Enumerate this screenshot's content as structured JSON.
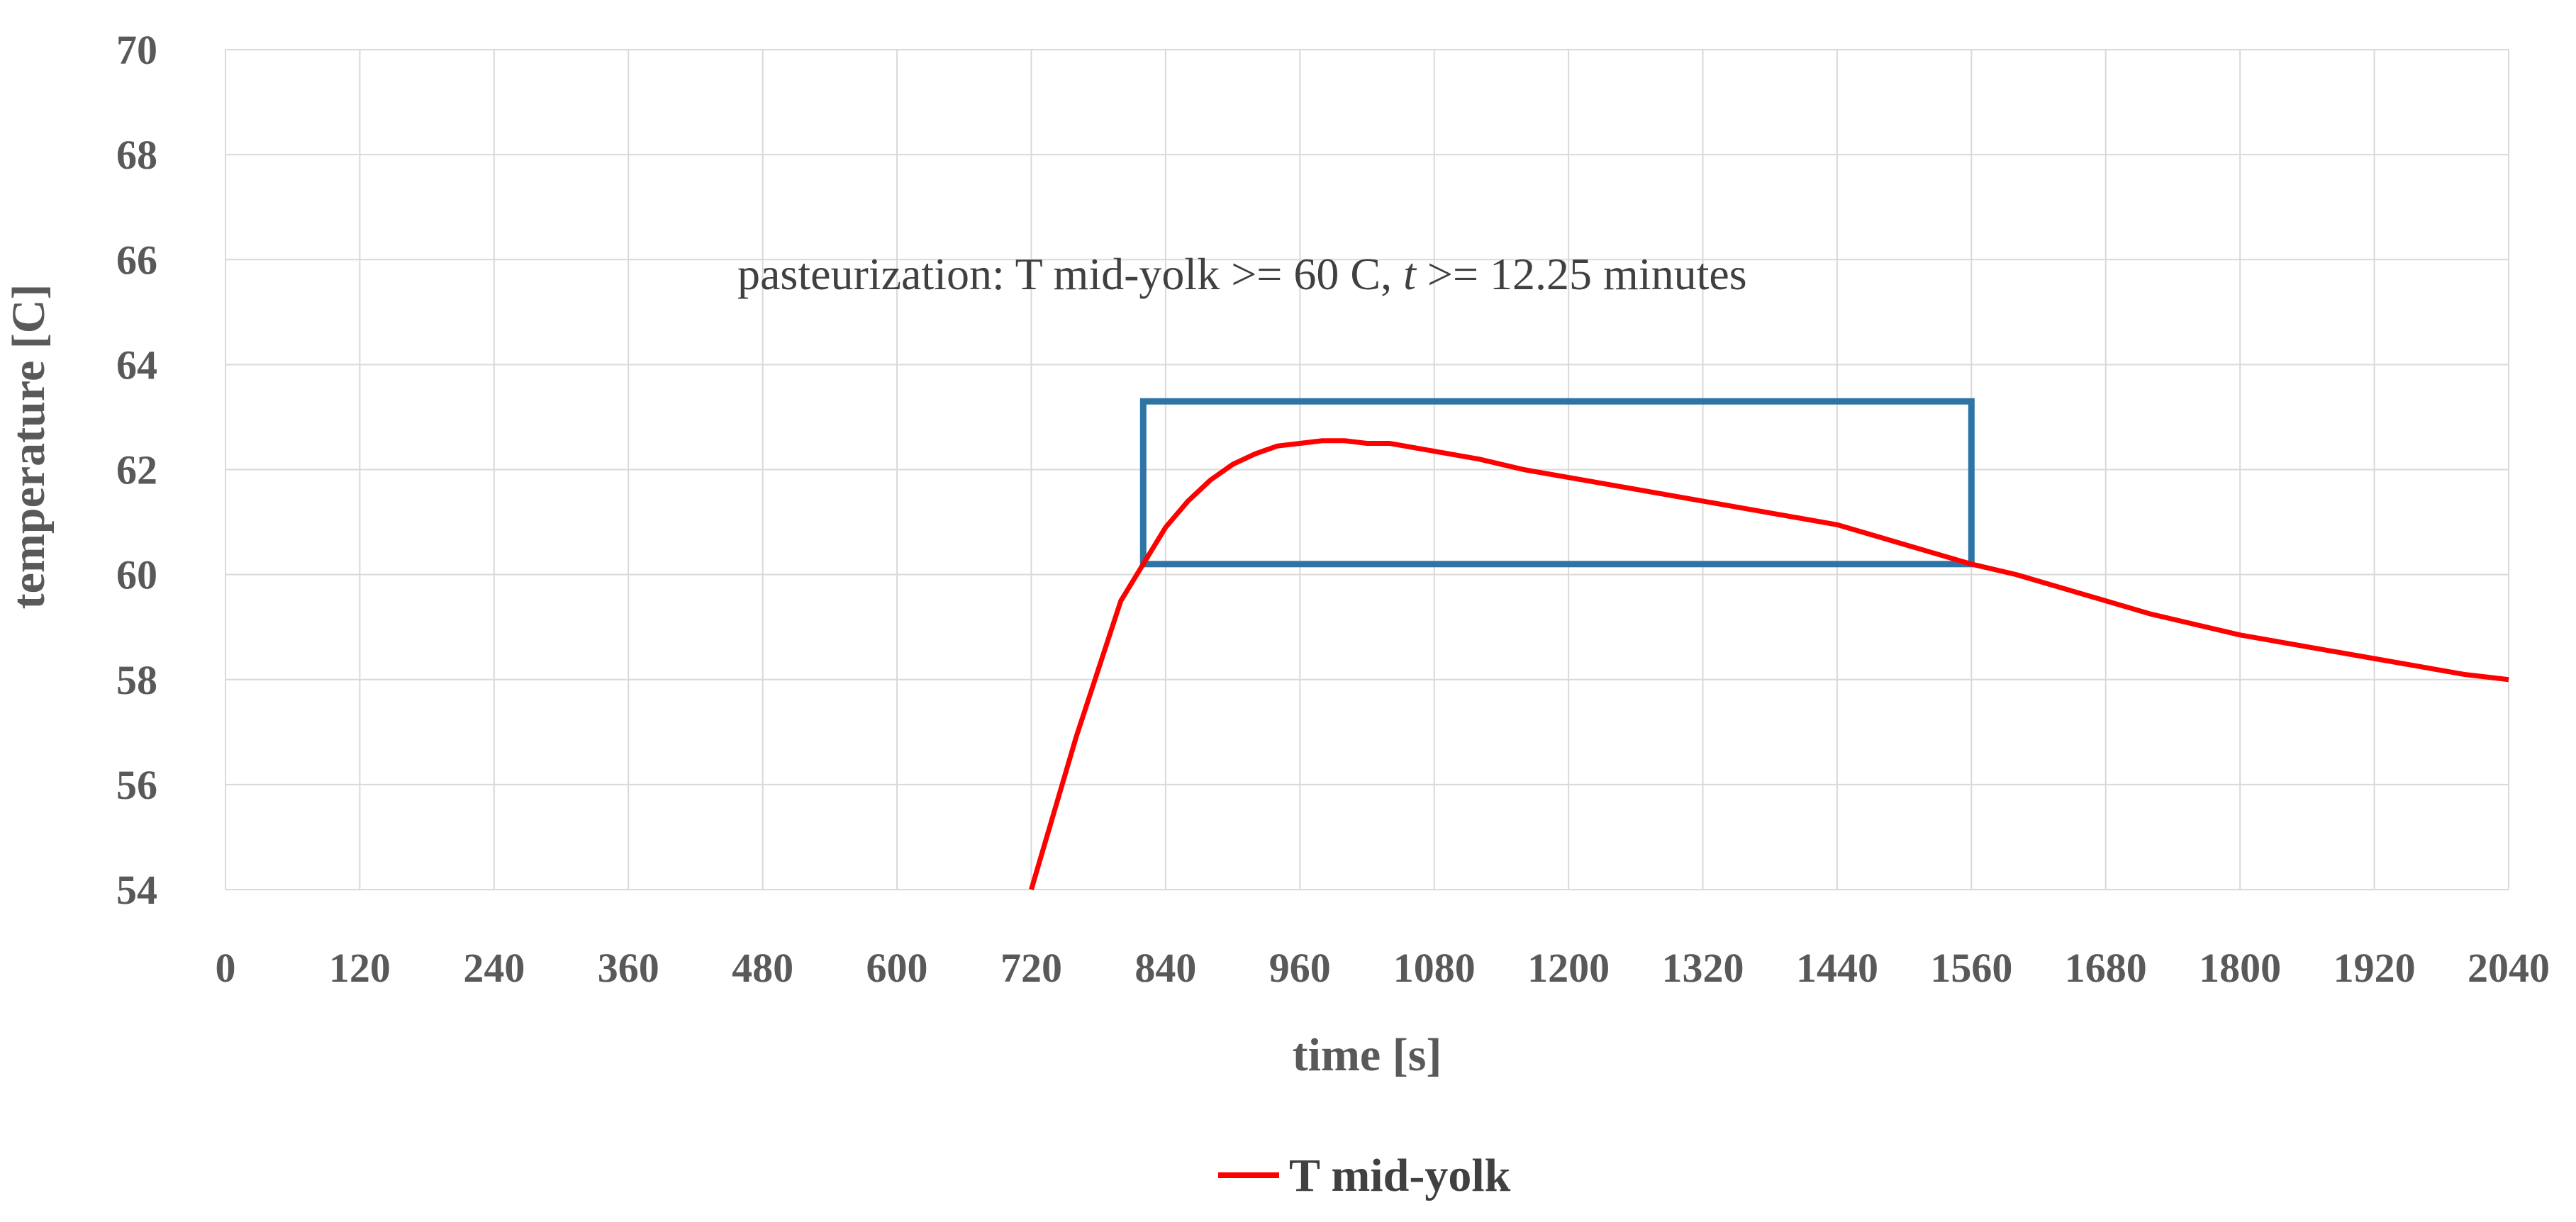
{
  "chart_data": {
    "type": "line",
    "title": "",
    "xlabel": "time [s]",
    "ylabel": "temperature [C]",
    "xlim": [
      0,
      2040
    ],
    "ylim": [
      54,
      70
    ],
    "x_ticks": [
      0,
      120,
      240,
      360,
      480,
      600,
      720,
      840,
      960,
      1080,
      1200,
      1320,
      1440,
      1560,
      1680,
      1800,
      1920,
      2040
    ],
    "y_ticks": [
      54,
      56,
      58,
      60,
      62,
      64,
      66,
      68,
      70
    ],
    "grid": true,
    "legend": {
      "position": "bottom-center",
      "entries": [
        "T mid-yolk"
      ]
    },
    "colors": {
      "series": "#ff0000",
      "box": "#2e75a6",
      "grid": "#d9d9d9",
      "text": "#595959"
    },
    "annotation": {
      "prefix": "pasteurization: T mid-yolk >= 60 C, ",
      "italic": "t",
      "suffix": " >= 12.25 minutes"
    },
    "highlight_box": {
      "x_start": 820,
      "x_end": 1560,
      "y_bottom": 60.2,
      "y_top": 63.3
    },
    "series": [
      {
        "name": "T mid-yolk",
        "x": [
          720,
          760,
          800,
          820,
          840,
          860,
          880,
          900,
          920,
          940,
          960,
          980,
          1000,
          1020,
          1040,
          1080,
          1120,
          1160,
          1200,
          1240,
          1280,
          1320,
          1360,
          1400,
          1440,
          1480,
          1520,
          1560,
          1600,
          1640,
          1680,
          1720,
          1760,
          1800,
          1840,
          1880,
          1920,
          1960,
          2000,
          2040
        ],
        "y": [
          54.0,
          56.9,
          59.5,
          60.2,
          60.9,
          61.4,
          61.8,
          62.1,
          62.3,
          62.45,
          62.5,
          62.55,
          62.55,
          62.5,
          62.5,
          62.35,
          62.2,
          62.0,
          61.85,
          61.7,
          61.55,
          61.4,
          61.25,
          61.1,
          60.95,
          60.7,
          60.45,
          60.2,
          60.0,
          59.75,
          59.5,
          59.25,
          59.05,
          58.85,
          58.7,
          58.55,
          58.4,
          58.25,
          58.1,
          58.0
        ]
      }
    ]
  }
}
